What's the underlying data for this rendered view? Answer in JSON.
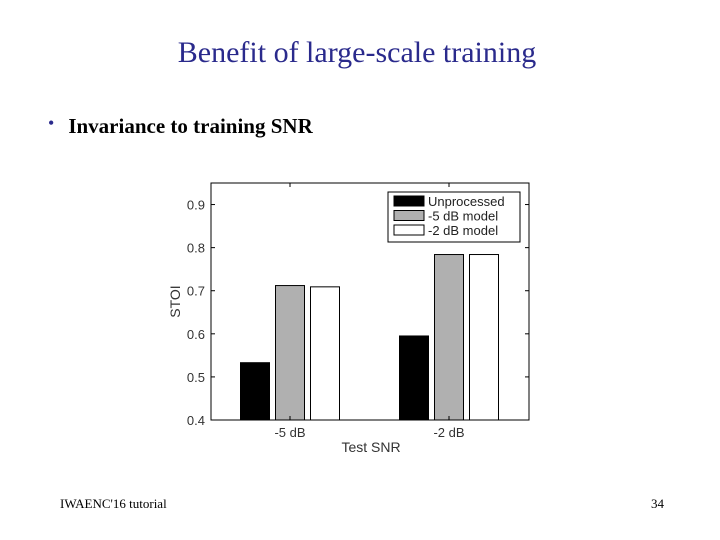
{
  "slide": {
    "title": "Benefit of large-scale training",
    "bullet": "Invariance to training SNR",
    "footer_left": "IWAENC'16 tutorial",
    "page_number": "34"
  },
  "colors": {
    "title": "#2a2a8c",
    "unprocessed": "#000000",
    "model_minus5": "#b0b0b0",
    "model_minus2": "#ffffff"
  },
  "chart_data": {
    "type": "bar",
    "xlabel": "Test SNR",
    "ylabel": "STOI",
    "ylim": [
      0.4,
      0.95
    ],
    "yticks": [
      0.4,
      0.5,
      0.6,
      0.7,
      0.8,
      0.9
    ],
    "categories": [
      "-5 dB",
      "-2 dB"
    ],
    "series": [
      {
        "name": "Unprocessed",
        "values": [
          0.533,
          0.595
        ]
      },
      {
        "name": "-5 dB model",
        "values": [
          0.712,
          0.784
        ]
      },
      {
        "name": "-2 dB model",
        "values": [
          0.709,
          0.784
        ]
      }
    ],
    "legend": "top-right",
    "grid": false
  }
}
